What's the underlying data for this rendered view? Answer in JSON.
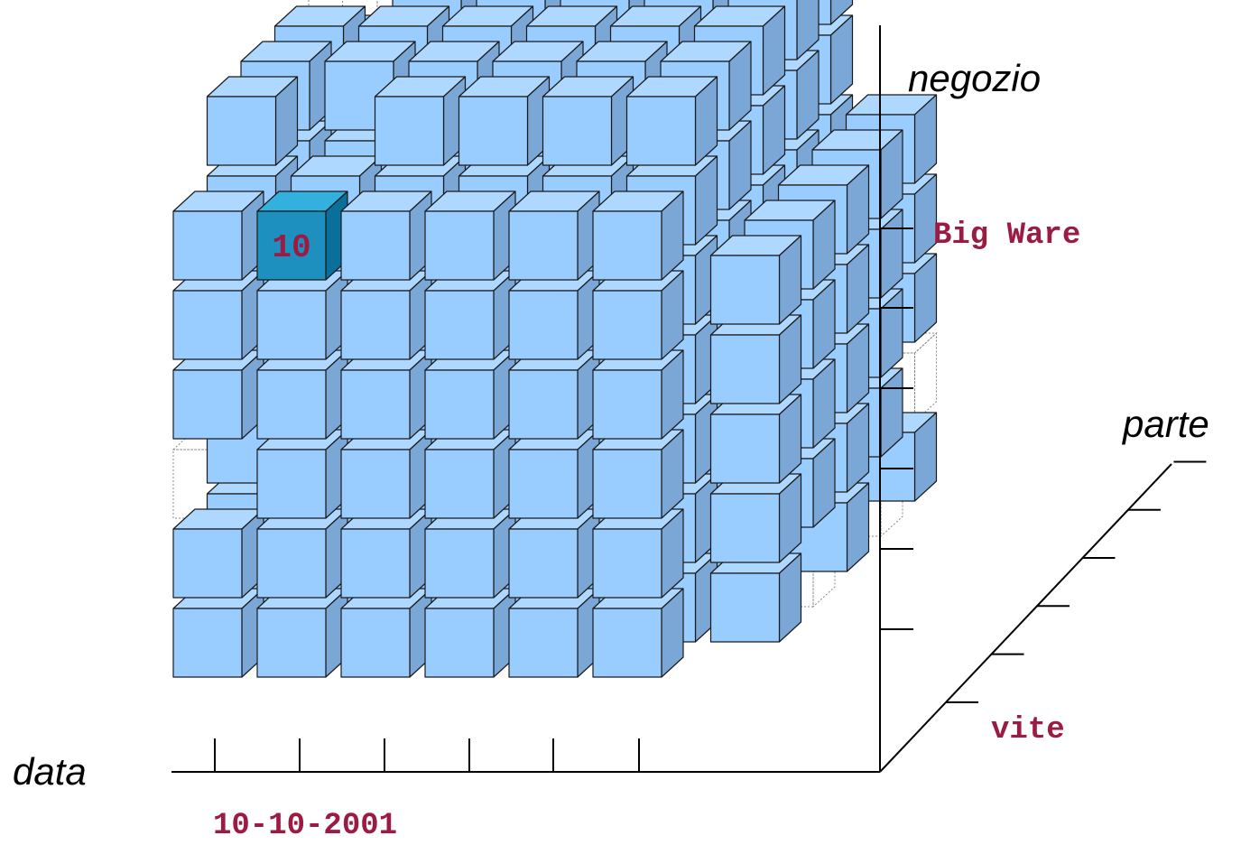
{
  "axes": {
    "store": "negozio",
    "part": "parte",
    "date": "data"
  },
  "values": {
    "store": "Big Ware",
    "part": "vite",
    "date": "10-10-2001"
  },
  "highlight": {
    "value": "10"
  },
  "colors": {
    "cube_front": "#99ccff",
    "cube_top": "#aed8ff",
    "cube_side": "#7aa7d6",
    "highlight_front": "#1e90c0",
    "highlight_top": "#33b0dd",
    "highlight_side": "#0a6f9a",
    "value_text": "#9b1b43",
    "axis_line": "#000000"
  }
}
